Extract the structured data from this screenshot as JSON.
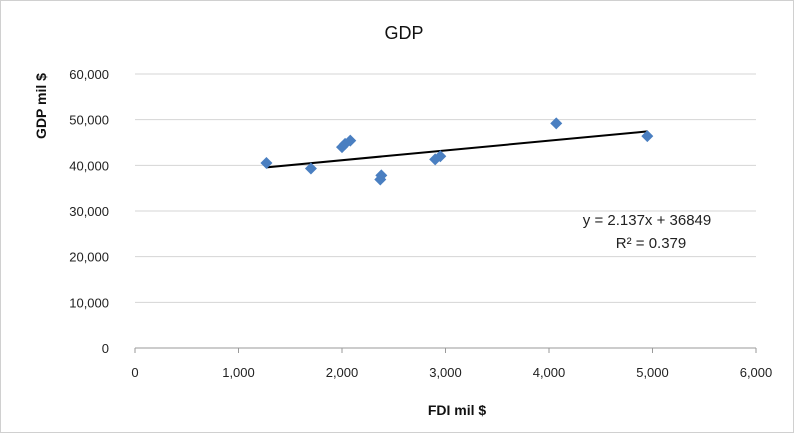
{
  "chart_data": {
    "type": "scatter",
    "title": "GDP",
    "xlabel": "FDI  mil $",
    "ylabel": "GDP mil $",
    "xlim": [
      0,
      6000
    ],
    "ylim": [
      0,
      60000
    ],
    "x_ticks": [
      0,
      1000,
      2000,
      3000,
      4000,
      5000,
      6000
    ],
    "x_tick_labels": [
      "0",
      "1,000",
      "2,000",
      "3,000",
      "4,000",
      "5,000",
      "6,000"
    ],
    "y_ticks": [
      0,
      10000,
      20000,
      30000,
      40000,
      50000,
      60000
    ],
    "y_tick_labels": [
      "0",
      "10,000",
      "20,000",
      "30,000",
      "40,000",
      "50,000",
      "60,000"
    ],
    "grid": "horizontal",
    "legend": "none",
    "series": [
      {
        "points": [
          {
            "x": 1270,
            "y": 40500
          },
          {
            "x": 1700,
            "y": 39300
          },
          {
            "x": 2000,
            "y": 44000
          },
          {
            "x": 2030,
            "y": 44700
          },
          {
            "x": 2080,
            "y": 45400
          },
          {
            "x": 2370,
            "y": 36900
          },
          {
            "x": 2380,
            "y": 37800
          },
          {
            "x": 2900,
            "y": 41300
          },
          {
            "x": 2950,
            "y": 42000
          },
          {
            "x": 4070,
            "y": 49200
          },
          {
            "x": 4950,
            "y": 46400
          }
        ],
        "color": "#4a7fc1",
        "marker": "diamond"
      }
    ],
    "trendline": {
      "type": "linear",
      "slope": 2.137,
      "intercept": 36849,
      "x_range": [
        1270,
        4950
      ],
      "color": "#000000"
    },
    "annotations": {
      "equation": "y = 2.137x + 36849",
      "r_squared": "R² = 0.379"
    }
  }
}
